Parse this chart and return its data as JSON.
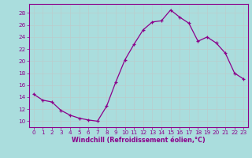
{
  "x": [
    0,
    1,
    2,
    3,
    4,
    5,
    6,
    7,
    8,
    9,
    10,
    11,
    12,
    13,
    14,
    15,
    16,
    17,
    18,
    19,
    20,
    21,
    22,
    23
  ],
  "y": [
    14.5,
    13.5,
    13.2,
    11.8,
    11.0,
    10.5,
    10.2,
    10.0,
    12.5,
    16.5,
    20.2,
    22.8,
    25.2,
    26.5,
    26.7,
    28.5,
    27.3,
    26.3,
    23.3,
    24.0,
    23.0,
    21.3,
    18.0,
    17.0
  ],
  "line_color": "#8b008b",
  "marker": "P",
  "marker_size": 3,
  "bg_color": "#aadddd",
  "grid_color": "#bbcccc",
  "xlabel": "Windchill (Refroidissement éolien,°C)",
  "xlabel_color": "#8b008b",
  "tick_color": "#8b008b",
  "spine_color": "#8b008b",
  "ylim": [
    9.0,
    29.5
  ],
  "xlim": [
    -0.5,
    23.5
  ],
  "yticks": [
    10,
    12,
    14,
    16,
    18,
    20,
    22,
    24,
    26,
    28
  ],
  "xticks": [
    0,
    1,
    2,
    3,
    4,
    5,
    6,
    7,
    8,
    9,
    10,
    11,
    12,
    13,
    14,
    15,
    16,
    17,
    18,
    19,
    20,
    21,
    22,
    23
  ],
  "tick_fontsize": 5.2,
  "xlabel_fontsize": 5.8,
  "xlabel_fontweight": "bold"
}
